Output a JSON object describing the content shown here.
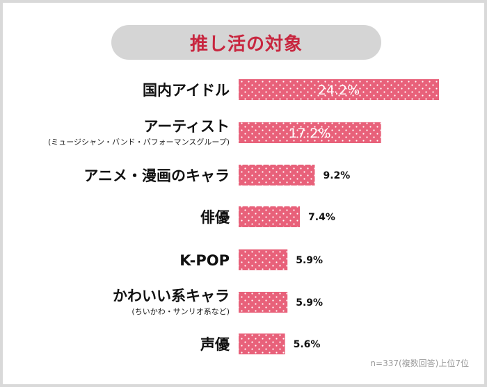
{
  "title": "推し活の対象",
  "footnote": "n=337(複数回答)上位7位",
  "colors": {
    "bar": "#e8617a",
    "dot": "#ffffff",
    "title_text": "#c8263f",
    "title_bg": "#d5d5d5"
  },
  "chart_data": {
    "type": "bar",
    "orientation": "horizontal",
    "categories": [
      {
        "label": "国内アイドル",
        "sublabel": ""
      },
      {
        "label": "アーティスト",
        "sublabel": "(ミュージシャン・バンド・パフォーマンスグループ)"
      },
      {
        "label": "アニメ・漫画のキャラ",
        "sublabel": ""
      },
      {
        "label": "俳優",
        "sublabel": ""
      },
      {
        "label": "K-POP",
        "sublabel": ""
      },
      {
        "label": "かわいい系キャラ",
        "sublabel": "(ちいかわ・サンリオ系など)"
      },
      {
        "label": "声優",
        "sublabel": ""
      }
    ],
    "values": [
      24.2,
      17.2,
      9.2,
      7.4,
      5.9,
      5.9,
      5.6
    ],
    "value_labels": [
      "24.2%",
      "17.2%",
      "9.2%",
      "7.4%",
      "5.9%",
      "5.9%",
      "5.6%"
    ],
    "grid": false,
    "legend": "none"
  }
}
